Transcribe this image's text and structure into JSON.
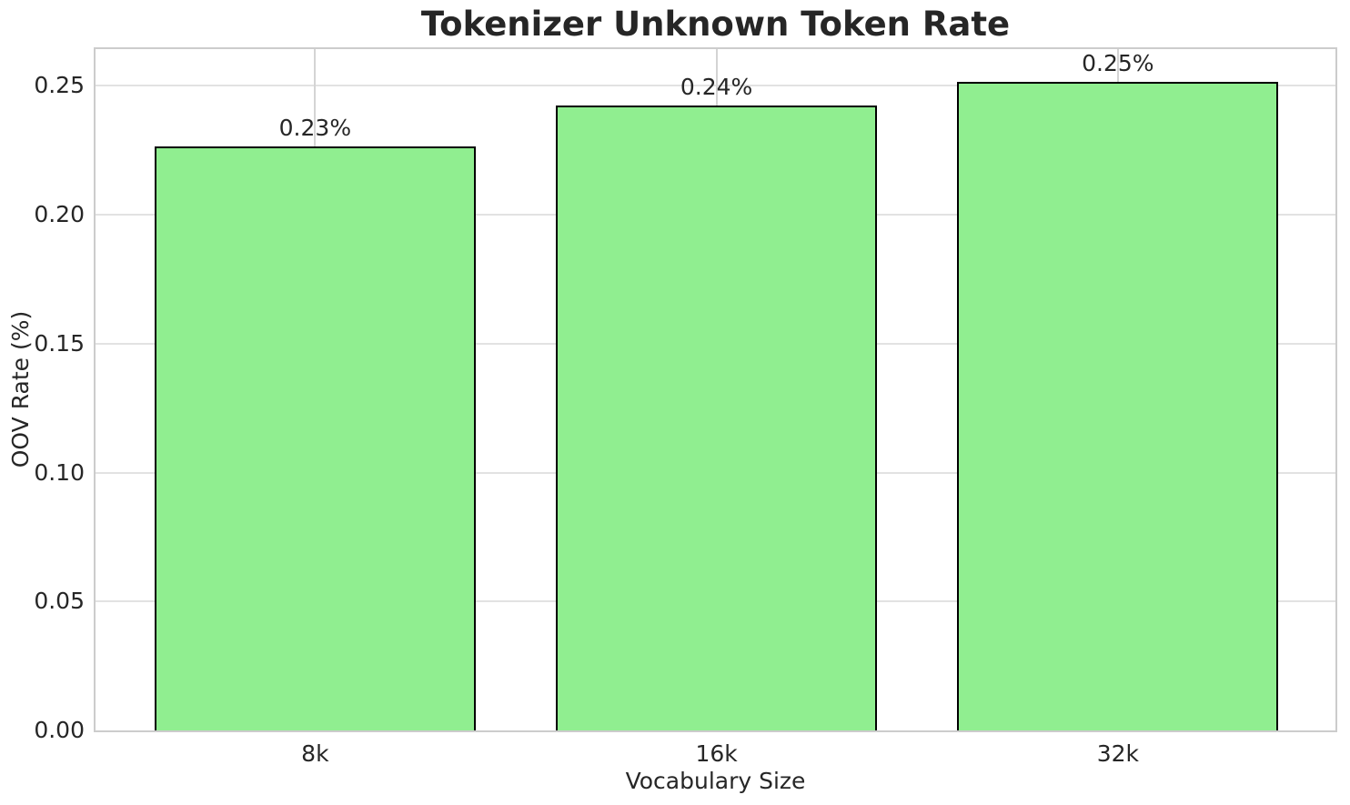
{
  "chart_data": {
    "type": "bar",
    "title": "Tokenizer Unknown Token Rate",
    "xlabel": "Vocabulary Size",
    "ylabel": "OOV Rate (%)",
    "categories": [
      "8k",
      "16k",
      "32k"
    ],
    "values": [
      0.2265,
      0.2423,
      0.2514
    ],
    "bar_labels": [
      "0.23%",
      "0.24%",
      "0.25%"
    ],
    "yticks": [
      0,
      0.05,
      0.1,
      0.15,
      0.2,
      0.25
    ],
    "ytick_labels": [
      "0.00",
      "0.05",
      "0.10",
      "0.15",
      "0.20",
      "0.25"
    ],
    "ylim": [
      0,
      0.2642
    ],
    "xlim": [
      -0.547,
      2.542
    ],
    "bar_width": 0.8,
    "grid": true,
    "legend": null,
    "colors": {
      "bar_fill": "#90EE90",
      "bar_edge": "#000000",
      "grid_h": "#e2e2e2",
      "grid_v": "#d4d4d4",
      "spine": "#cccccc",
      "text": "#262626",
      "background": "#ffffff"
    }
  }
}
